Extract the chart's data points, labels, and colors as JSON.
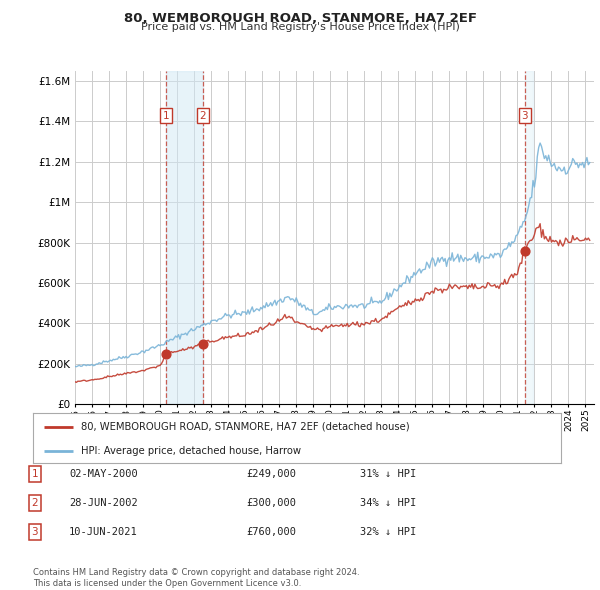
{
  "title": "80, WEMBOROUGH ROAD, STANMORE, HA7 2EF",
  "subtitle": "Price paid vs. HM Land Registry's House Price Index (HPI)",
  "legend_line1": "80, WEMBOROUGH ROAD, STANMORE, HA7 2EF (detached house)",
  "legend_line2": "HPI: Average price, detached house, Harrow",
  "footer1": "Contains HM Land Registry data © Crown copyright and database right 2024.",
  "footer2": "This data is licensed under the Open Government Licence v3.0.",
  "transactions": [
    {
      "label": "1",
      "date": "02-MAY-2000",
      "price": 249000,
      "pct": "31% ↓ HPI",
      "year": 2000.37,
      "price_y": 249000
    },
    {
      "label": "2",
      "date": "28-JUN-2002",
      "price": 300000,
      "pct": "34% ↓ HPI",
      "year": 2002.5,
      "price_y": 300000
    },
    {
      "label": "3",
      "date": "10-JUN-2021",
      "price": 760000,
      "pct": "32% ↓ HPI",
      "year": 2021.44,
      "price_y": 760000
    }
  ],
  "hpi_color": "#7ab4d8",
  "price_color": "#c0392b",
  "vline_color": "#c0392b",
  "shade_color": "#d0e8f5",
  "background_color": "#ffffff",
  "grid_color": "#cccccc",
  "ylim": [
    0,
    1650000
  ],
  "xlim": [
    1995.0,
    2025.5
  ]
}
